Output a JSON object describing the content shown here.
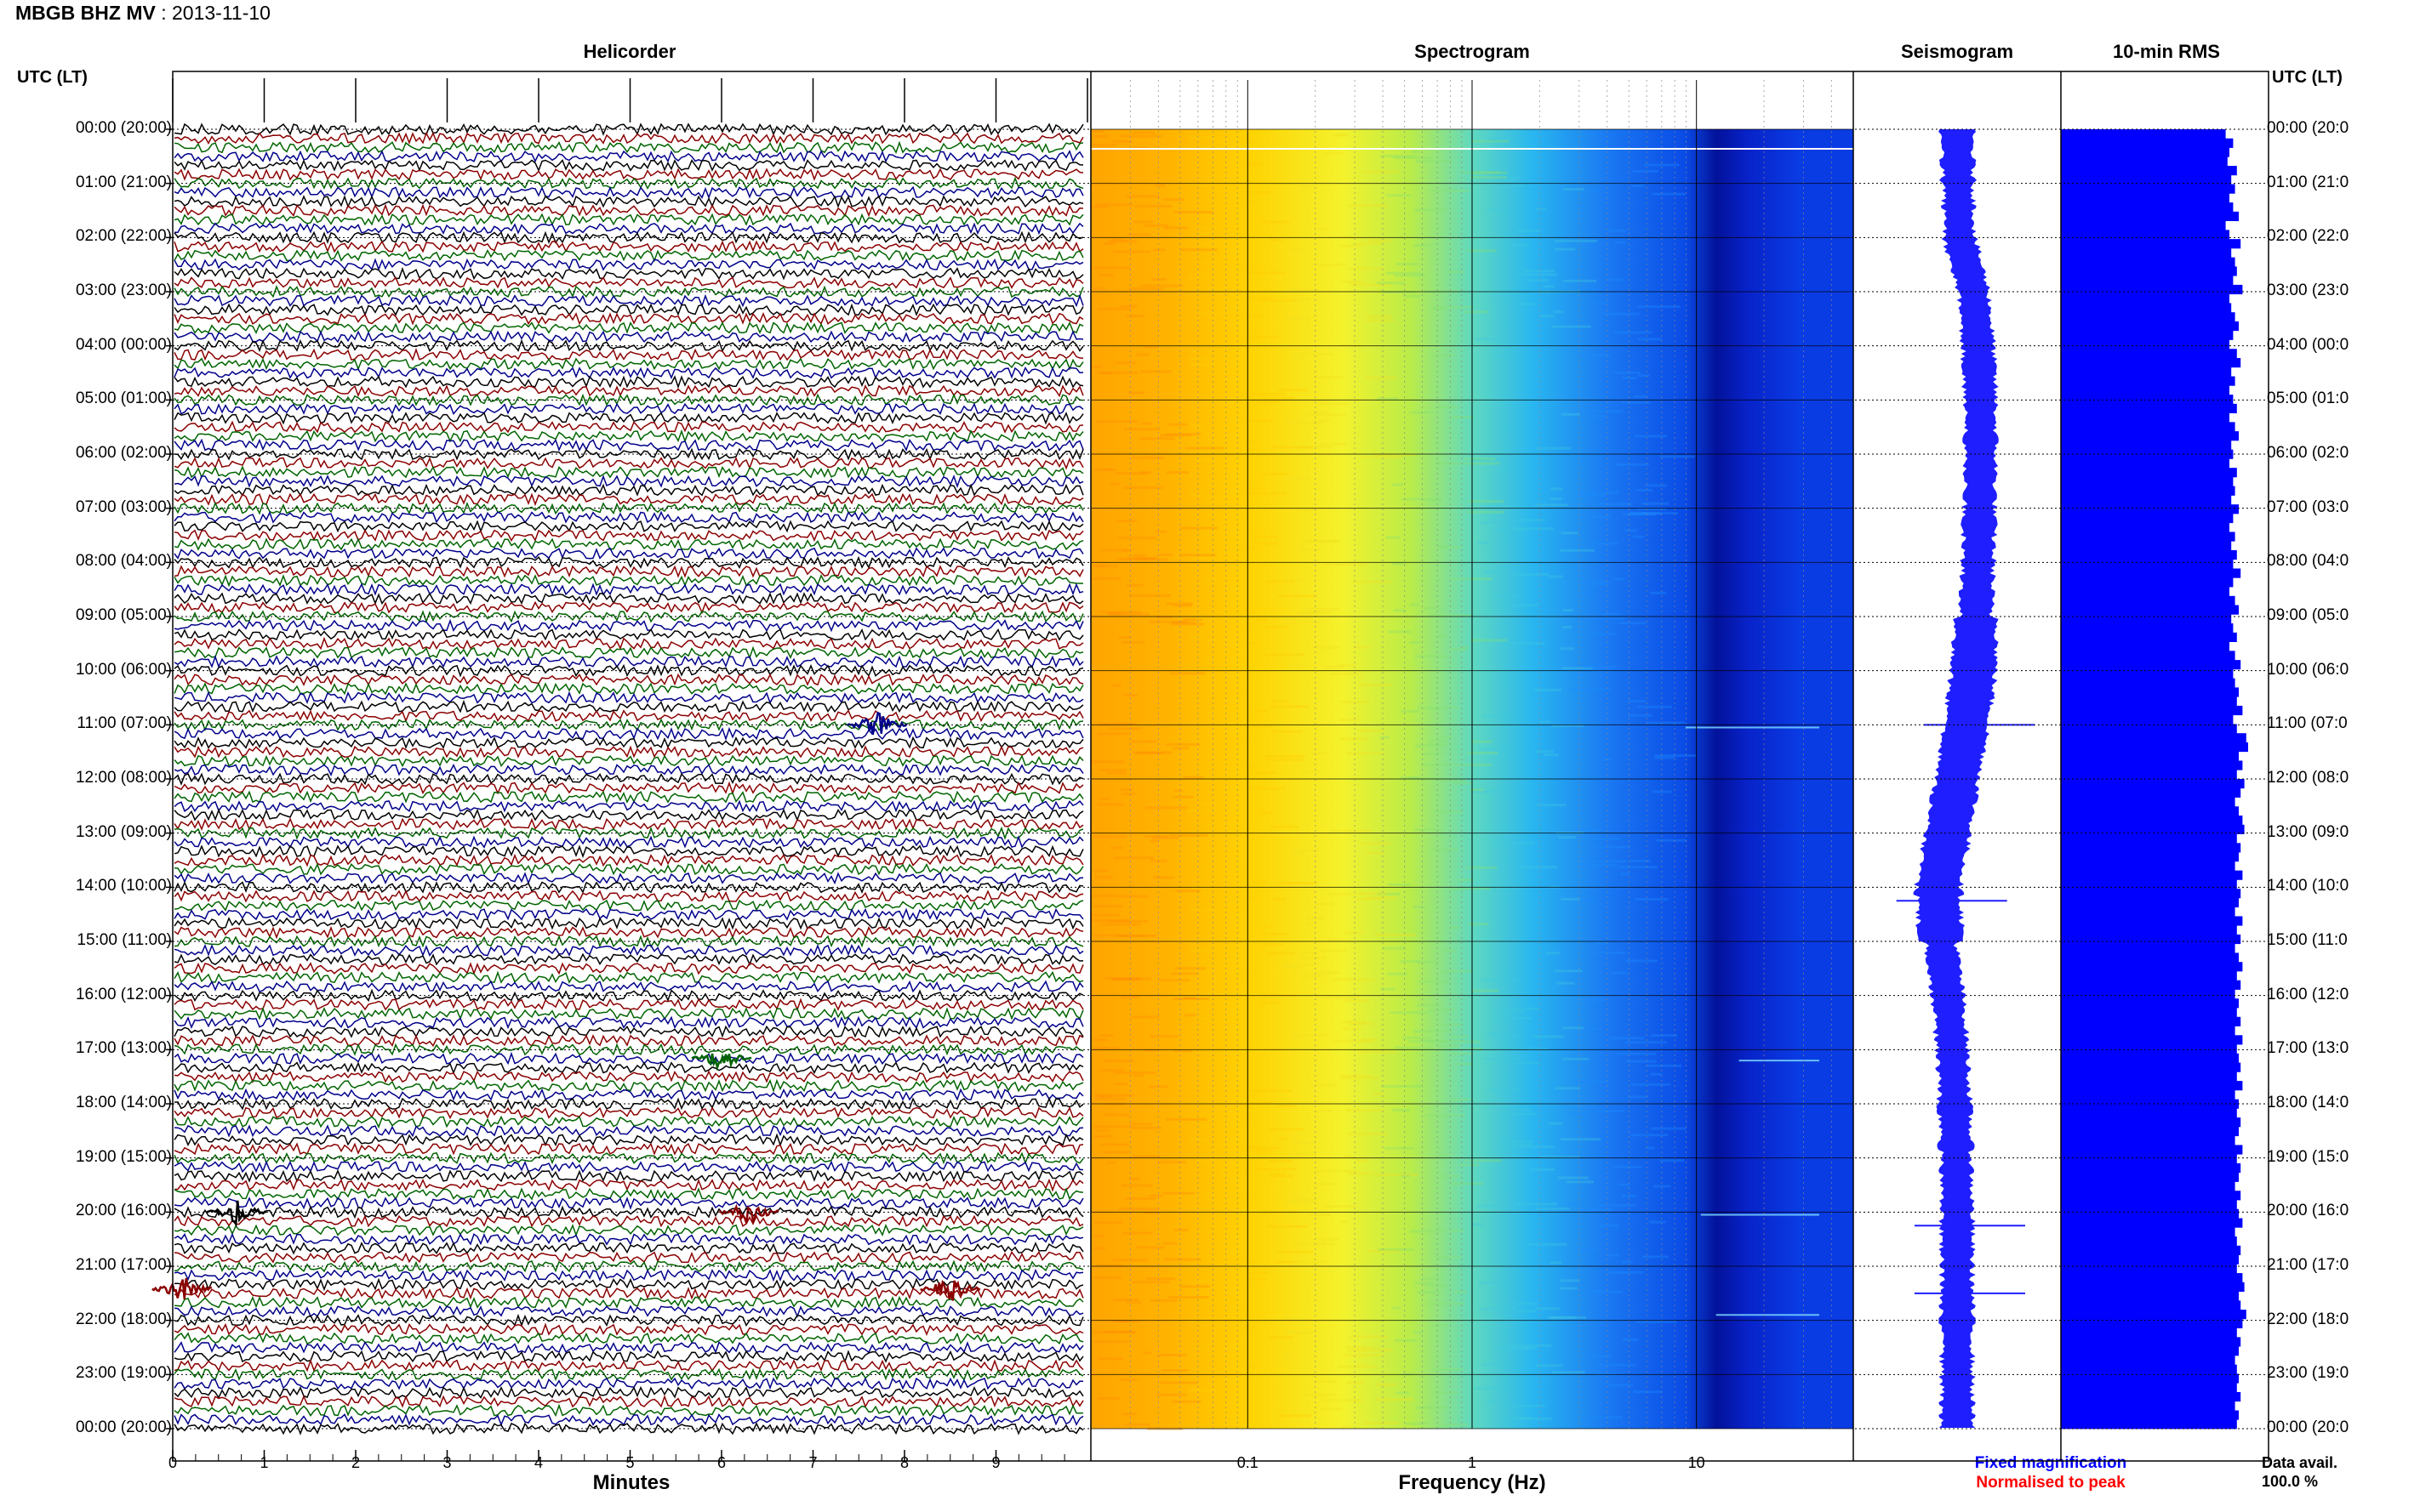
{
  "header": {
    "station": "MBGB BHZ MV",
    "separator": " : ",
    "date": "2013-11-10"
  },
  "panels": {
    "helicorder": "Helicorder",
    "spectrogram": "Spectrogram",
    "seismogram": "Seismogram",
    "rms": "10-min RMS"
  },
  "axis": {
    "tz_label_left": "UTC (LT)",
    "tz_label_right": "UTC (LT)",
    "time_labels": [
      "00:00 (20:00)",
      "01:00 (21:00)",
      "02:00 (22:00)",
      "03:00 (23:00)",
      "04:00 (00:00)",
      "05:00 (01:00)",
      "06:00 (02:00)",
      "07:00 (03:00)",
      "08:00 (04:00)",
      "09:00 (05:00)",
      "10:00 (06:00)",
      "11:00 (07:00)",
      "12:00 (08:00)",
      "13:00 (09:00)",
      "14:00 (10:00)",
      "15:00 (11:00)",
      "16:00 (12:00)",
      "17:00 (13:00)",
      "18:00 (14:00)",
      "19:00 (15:00)",
      "20:00 (16:00)",
      "21:00 (17:00)",
      "22:00 (18:00)",
      "23:00 (19:00)",
      "00:00 (20:00)"
    ],
    "time_labels_right": [
      "00:00 (20:0",
      "01:00 (21:0",
      "02:00 (22:0",
      "03:00 (23:0",
      "04:00 (00:0",
      "05:00 (01:0",
      "06:00 (02:0",
      "07:00 (03:0",
      "08:00 (04:0",
      "09:00 (05:0",
      "10:00 (06:0",
      "11:00 (07:0",
      "12:00 (08:0",
      "13:00 (09:0",
      "14:00 (10:0",
      "15:00 (11:0",
      "16:00 (12:0",
      "17:00 (13:0",
      "18:00 (14:0",
      "19:00 (15:0",
      "20:00 (16:0",
      "21:00 (17:0",
      "22:00 (18:0",
      "23:00 (19:0",
      "00:00 (20:0"
    ],
    "minutes_ticks": [
      "0",
      "1",
      "2",
      "3",
      "4",
      "5",
      "6",
      "7",
      "8",
      "9"
    ],
    "minutes_label": "Minutes",
    "freq_ticks": [
      "0.1",
      "1",
      "10"
    ],
    "freq_label": "Frequency (Hz)"
  },
  "legend": {
    "fixed": "Fixed magnification",
    "normalised": "Normalised to peak",
    "fixed_color": "#0000ff",
    "normalised_color": "#ff0000"
  },
  "availability": {
    "label": "Data avail.",
    "value": "100.0 %"
  },
  "colors": {
    "trace_cycle": [
      "#000000",
      "#8b0000",
      "#006400",
      "#00008b"
    ],
    "seismogram": "#1e1eff",
    "rms": "#0000ff"
  },
  "chart_data": [
    {
      "type": "heatmap",
      "title": "Helicorder",
      "xlabel": "Minutes",
      "xlim": [
        0,
        10
      ],
      "ylim": [
        "00:00",
        "24:00"
      ],
      "traces_per_hour": 6,
      "events": [
        {
          "time": "11:00",
          "minute": 7.7,
          "color": "#00008b"
        },
        {
          "time": "17:10",
          "minute": 6.0,
          "color": "#006400"
        },
        {
          "time": "20:00",
          "minute": 0.7,
          "color": "#000000"
        },
        {
          "time": "20:00",
          "minute": 6.3,
          "color": "#8b0000"
        },
        {
          "time": "21:25",
          "minute": 0.1,
          "color": "#8b0000"
        },
        {
          "time": "21:25",
          "minute": 8.5,
          "color": "#8b0000"
        }
      ]
    },
    {
      "type": "heatmap",
      "title": "Spectrogram",
      "xlabel": "Frequency (Hz)",
      "xscale": "log",
      "xlim": [
        0.02,
        50
      ],
      "ylim": [
        "00:00",
        "24:00"
      ],
      "colormap": [
        "#ff8c00",
        "#ffd700",
        "#ffff33",
        "#99ee66",
        "#33ccdd",
        "#1e90ff",
        "#0033dd",
        "#000088"
      ]
    },
    {
      "type": "line",
      "title": "Seismogram",
      "ylim": [
        "00:00",
        "24:00"
      ],
      "envelope_center": [
        0.0,
        0.02,
        0.05,
        0.35,
        0.45,
        0.5,
        0.5,
        0.48,
        0.45,
        0.4,
        0.35,
        0.2,
        0.0,
        -0.2,
        -0.4,
        -0.35,
        -0.2,
        -0.1,
        -0.05,
        -0.02,
        0.0,
        0.0,
        0.0,
        0.0,
        0.0
      ],
      "spikes": [
        "11:00",
        "14:15",
        "20:15",
        "21:30"
      ]
    },
    {
      "type": "bar",
      "title": "10-min RMS",
      "categories_interval_min": 10,
      "values_relative": [
        0.88,
        0.92,
        0.9,
        0.89,
        0.94,
        0.91,
        0.93,
        0.9,
        0.92,
        0.95,
        0.88,
        0.9,
        0.96,
        0.91,
        0.93,
        0.94,
        0.92,
        0.97,
        0.9,
        0.91,
        0.93,
        0.95,
        0.92,
        0.9,
        0.94,
        0.96,
        0.91,
        0.93,
        0.9,
        0.92,
        0.94,
        0.9,
        0.93,
        0.95,
        0.91,
        0.92,
        0.9,
        0.94,
        0.92,
        0.93,
        0.91,
        0.95,
        0.92,
        0.9,
        0.93,
        0.91,
        0.94,
        0.92,
        0.96,
        0.92,
        0.9,
        0.93,
        0.95,
        0.91,
        0.92,
        0.94,
        0.9,
        0.93,
        0.96,
        0.92,
        0.93,
        0.95,
        0.94,
        0.97,
        0.92,
        0.94,
        0.99,
        1.0,
        0.95,
        0.97,
        0.94,
        0.98,
        0.96,
        0.93,
        0.95,
        0.97,
        0.98,
        0.94,
        0.96,
        0.95,
        0.93,
        0.97,
        0.94,
        0.96,
        0.95,
        0.93,
        0.97,
        0.94,
        0.96,
        0.93,
        0.95,
        0.97,
        0.94,
        0.96,
        0.93,
        0.95,
        0.94,
        0.96,
        0.93,
        0.97,
        0.94,
        0.95,
        0.96,
        0.94,
        0.97,
        0.93,
        0.95,
        0.94,
        0.96,
        0.95,
        0.93,
        0.97,
        0.94,
        0.96,
        0.95,
        0.93,
        0.96,
        0.94,
        0.95,
        0.97,
        0.93,
        0.94,
        0.96,
        0.95,
        0.94,
        0.97,
        0.98,
        0.95,
        0.96,
        0.99,
        0.97,
        0.94,
        0.96,
        0.95,
        0.93,
        0.94,
        0.95,
        0.94,
        0.96,
        0.93,
        0.95,
        0.94
      ]
    }
  ]
}
